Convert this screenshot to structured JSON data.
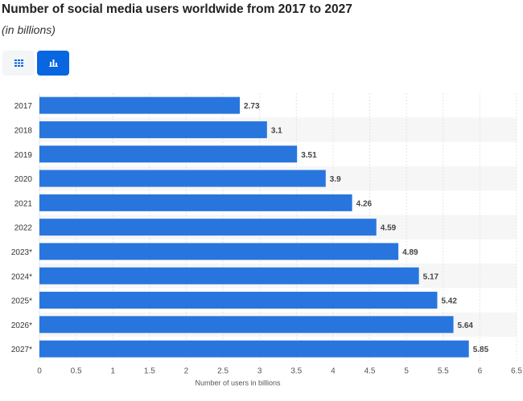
{
  "header": {
    "title": "Number of social media users worldwide from 2017 to 2027",
    "subtitle": "(in billions)"
  },
  "toolbar": {
    "table_icon": "grid-table-icon",
    "chart_icon": "bar-chart-icon",
    "accent_color": "#0866e0"
  },
  "chart_data": {
    "type": "bar",
    "orientation": "horizontal",
    "categories": [
      "2017",
      "2018",
      "2019",
      "2020",
      "2021",
      "2022",
      "2023*",
      "2024*",
      "2025*",
      "2026*",
      "2027*"
    ],
    "values": [
      2.73,
      3.1,
      3.51,
      3.9,
      4.26,
      4.59,
      4.89,
      5.17,
      5.42,
      5.64,
      5.85
    ],
    "data_labels": [
      "2.73",
      "3.1",
      "3.51",
      "3.9",
      "4.26",
      "4.59",
      "4.89",
      "5.17",
      "5.42",
      "5.64",
      "5.85"
    ],
    "xlabel": "Number of users in billions",
    "ylabel": "",
    "xlim": [
      0,
      6.5
    ],
    "xticks": [
      "0",
      "0.5",
      "1",
      "1.5",
      "2",
      "2.5",
      "3",
      "3.5",
      "4",
      "4.5",
      "5",
      "5.5",
      "6",
      "6.5"
    ],
    "bar_color": "#2876dd",
    "grid": true,
    "alternating_row_shading": true
  }
}
